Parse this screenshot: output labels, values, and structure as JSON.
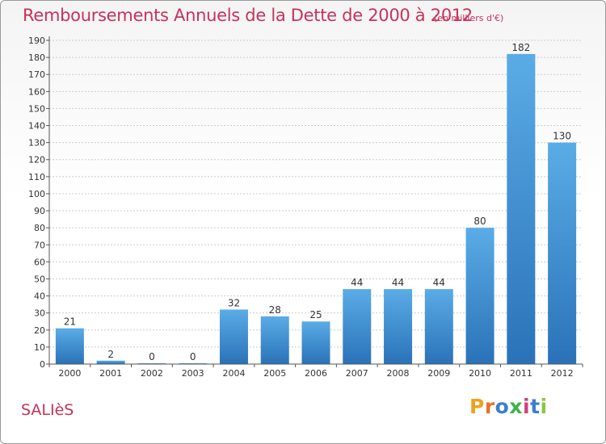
{
  "header": {
    "title": "Remboursements Annuels de la Dette de 2000 à 2012",
    "subtitle": "(en milliers d'€)"
  },
  "footer": {
    "commune": "SALIèS",
    "brand": [
      "P",
      "r",
      "o",
      "x",
      "i",
      "t",
      "i"
    ],
    "brand_colors": [
      "#f0a020",
      "#e8702a",
      "#3a7fd0",
      "#3db34a",
      "#d04080",
      "#3a7fd0",
      "#8cc63f"
    ]
  },
  "colors": {
    "bar_light": "#5aace6",
    "bar_dark": "#2a72b8",
    "grid": "#cccccc",
    "axis": "#555555"
  },
  "chart_data": {
    "type": "bar",
    "categories": [
      "2000",
      "2001",
      "2002",
      "2003",
      "2004",
      "2005",
      "2006",
      "2007",
      "2008",
      "2009",
      "2010",
      "2011",
      "2012"
    ],
    "values": [
      21,
      2,
      0,
      0,
      32,
      28,
      25,
      44,
      44,
      44,
      80,
      182,
      130
    ],
    "ylim": [
      0,
      190
    ],
    "yticks": [
      0,
      10,
      20,
      30,
      40,
      50,
      60,
      70,
      80,
      90,
      100,
      110,
      120,
      130,
      140,
      150,
      160,
      170,
      180,
      190
    ],
    "grid": true,
    "xlabel": "",
    "ylabel": ""
  }
}
